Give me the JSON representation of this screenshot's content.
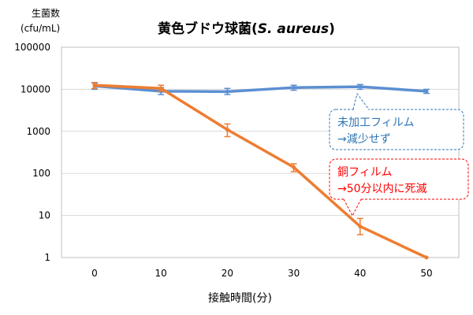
{
  "chart_data": {
    "type": "line",
    "title_main": "黄色ブドウ球菌(",
    "title_species": "S. aureus",
    "title_end": ")",
    "ylabel_line1": "生菌数",
    "ylabel_line2": "(cfu/mL)",
    "xlabel": "接触時間(分)",
    "x": [
      0,
      10,
      20,
      30,
      40,
      50
    ],
    "xticks": [
      "0",
      "10",
      "20",
      "30",
      "40",
      "50"
    ],
    "yticks": [
      "1",
      "10",
      "100",
      "1000",
      "10000",
      "100000"
    ],
    "ylim": [
      1,
      100000
    ],
    "yscale": "log",
    "grid": "horizontal",
    "series": [
      {
        "name": "未加工フィルム",
        "color": "#5b8fd1",
        "values": [
          12000,
          9000,
          8800,
          11000,
          11500,
          9000
        ],
        "err_lo": [
          10000,
          7500,
          7500,
          9500,
          10000,
          8000
        ],
        "err_hi": [
          14000,
          11000,
          10500,
          12500,
          13000,
          10000
        ]
      },
      {
        "name": "銅フィルム",
        "color": "#ed7d31",
        "values": [
          12500,
          10500,
          1100,
          140,
          5.5,
          1
        ],
        "err_lo": [
          10500,
          9000,
          750,
          110,
          3.5,
          1
        ],
        "err_hi": [
          14500,
          12500,
          1500,
          170,
          8.5,
          1
        ]
      }
    ],
    "annotations": [
      {
        "series": 0,
        "line1": "未加工フィルム",
        "line2": "→減少せず",
        "color": "#2f75b5"
      },
      {
        "series": 1,
        "line1": "銅フィルム",
        "line2": "→50分以内に死滅",
        "color": "#ff0000"
      }
    ]
  }
}
